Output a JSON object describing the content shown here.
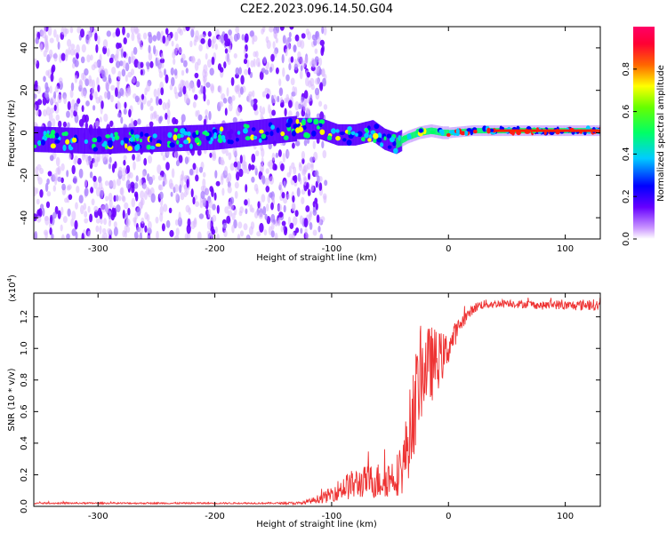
{
  "title": "C2E2.2023.096.14.50.G04",
  "chart_data": [
    {
      "type": "heatmap",
      "title": "C2E2.2023.096.14.50.G04",
      "xlabel": "Height of straight line (km)",
      "ylabel": "Frequency (Hz)",
      "xlim": [
        -355,
        130
      ],
      "ylim": [
        -50,
        50
      ],
      "x_ticks": [
        -300,
        -200,
        -100,
        0,
        100
      ],
      "x_tick_labels": [
        "-300",
        "-200",
        "-100",
        "0",
        "100"
      ],
      "y_ticks": [
        -40,
        -20,
        0,
        20,
        40
      ],
      "y_tick_labels": [
        "-40",
        "-20",
        "0",
        "20",
        "40"
      ],
      "ridge_frequency": {
        "x": [
          -355,
          -300,
          -200,
          -130,
          -110,
          -95,
          -80,
          -65,
          -55,
          -45,
          -35,
          -25,
          -15,
          -5,
          0,
          20,
          50,
          80,
          100,
          130
        ],
        "y": [
          -3,
          -4,
          -2,
          2,
          2,
          -1,
          -1,
          1,
          -3,
          -5,
          -2,
          0,
          1,
          0,
          0,
          1,
          1,
          1,
          1,
          1
        ]
      },
      "colorbar": {
        "label": "Normalized spectral amplitude",
        "range": [
          0,
          1
        ],
        "ticks": [
          0.0,
          0.2,
          0.4,
          0.6,
          0.8
        ],
        "tick_labels": [
          "0.0",
          "0.2",
          "0.4",
          "0.6",
          "0.8"
        ],
        "colormap": [
          "#ffffff",
          "#cc99ff",
          "#6600ff",
          "#0000ff",
          "#00ccff",
          "#00ff66",
          "#66ff00",
          "#ffff00",
          "#ff6600",
          "#ff0033",
          "#ff0066"
        ]
      }
    },
    {
      "type": "line",
      "xlabel": "Height of straight line (km)",
      "ylabel": "SNR (10 * v/v)",
      "y_multiplier_label": "(x10",
      "y_multiplier_exp": "4",
      "y_multiplier_close": ")",
      "xlim": [
        -355,
        130
      ],
      "ylim": [
        0,
        1.35
      ],
      "x_ticks": [
        -300,
        -200,
        -100,
        0,
        100
      ],
      "x_tick_labels": [
        "-300",
        "-200",
        "-100",
        "0",
        "100"
      ],
      "y_ticks": [
        0.0,
        0.2,
        0.4,
        0.6,
        0.8,
        1.0,
        1.2
      ],
      "y_tick_labels": [
        "0.0",
        "0.2",
        "0.4",
        "0.6",
        "0.8",
        "1.0",
        "1.2"
      ],
      "series": [
        {
          "name": "SNR",
          "color": "#ee3333",
          "x": [
            -355,
            -300,
            -250,
            -200,
            -150,
            -125,
            -115,
            -105,
            -100,
            -90,
            -80,
            -70,
            -60,
            -50,
            -40,
            -35,
            -30,
            -25,
            -20,
            -15,
            -10,
            -5,
            0,
            5,
            10,
            15,
            20,
            25,
            30,
            40,
            50,
            60,
            70,
            80,
            90,
            100,
            110,
            120,
            130
          ],
          "y": [
            0.02,
            0.02,
            0.02,
            0.02,
            0.02,
            0.02,
            0.04,
            0.06,
            0.08,
            0.12,
            0.14,
            0.16,
            0.16,
            0.18,
            0.22,
            0.4,
            0.6,
            0.8,
            0.88,
            0.9,
            0.92,
            0.95,
            1.0,
            1.08,
            1.15,
            1.2,
            1.24,
            1.27,
            1.28,
            1.28,
            1.29,
            1.28,
            1.28,
            1.27,
            1.28,
            1.27,
            1.27,
            1.28,
            1.27
          ],
          "noise": [
            0.005,
            0.005,
            0.005,
            0.005,
            0.005,
            0.01,
            0.02,
            0.04,
            0.05,
            0.08,
            0.1,
            0.1,
            0.12,
            0.12,
            0.15,
            0.25,
            0.3,
            0.3,
            0.25,
            0.25,
            0.2,
            0.15,
            0.1,
            0.08,
            0.05,
            0.04,
            0.03,
            0.03,
            0.03,
            0.025,
            0.025,
            0.025,
            0.025,
            0.025,
            0.03,
            0.03,
            0.03,
            0.04,
            0.03
          ]
        }
      ]
    }
  ]
}
